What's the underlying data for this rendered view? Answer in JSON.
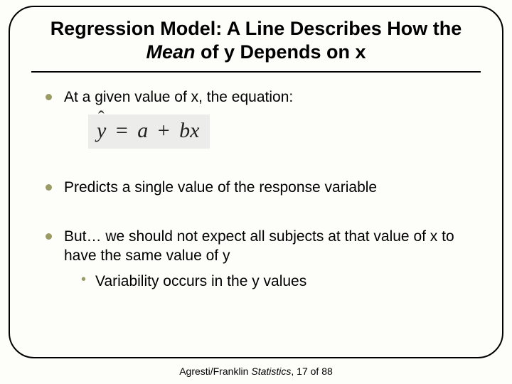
{
  "title_pre": "Regression Model:  A Line Describes How the ",
  "title_italic": "Mean",
  "title_post": " of y Depends on x",
  "bullets": {
    "b1": "At a given value of x, the equation:",
    "b2": "Predicts a single value of the response variable",
    "b3": "But… we should not expect all subjects at that value of x to have the same value of y",
    "b3_sub": "Variability occurs in the y values"
  },
  "equation": {
    "lhs_var": "y",
    "eq_sign": "=",
    "a": "a",
    "plus": "+",
    "b": "b",
    "x": "x"
  },
  "footer": {
    "authors": "Agresti/Franklin ",
    "work": "Statistics",
    "sep": ", ",
    "page": "17",
    "of": " of ",
    "total": "88"
  },
  "colors": {
    "bullet": "#9b9b66",
    "eq_bg": "#ececea",
    "page_bg": "#fdfdfa",
    "text": "#000000"
  }
}
